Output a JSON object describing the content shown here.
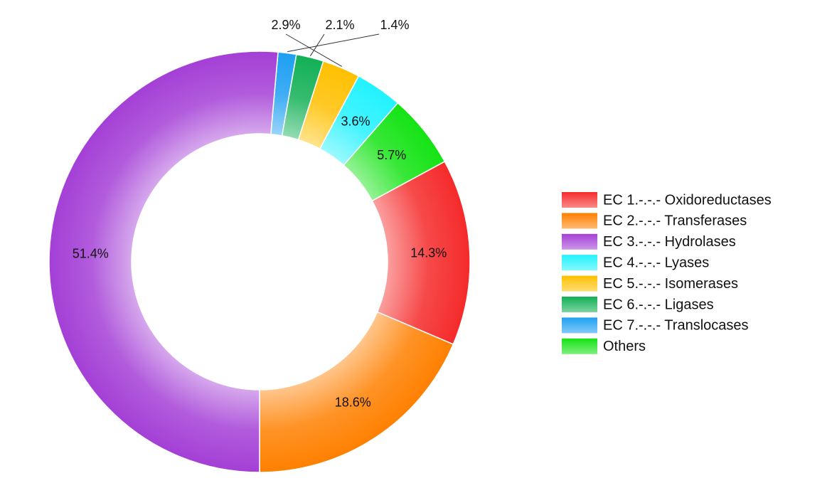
{
  "chart_data": {
    "type": "donut",
    "categories": [
      "EC 1.-.-.- Oxidoreductases",
      "EC 2.-.-.- Transferases",
      "EC 3.-.-.- Hydrolases",
      "EC 4.-.-.- Lyases",
      "EC 5.-.-.- Isomerases",
      "EC 6.-.-.- Ligases",
      "EC 7.-.-.- Translocases",
      "Others"
    ],
    "values": [
      14.3,
      18.6,
      51.4,
      3.6,
      2.9,
      2.1,
      1.4,
      5.7
    ],
    "value_labels": [
      "14.3%",
      "18.6%",
      "51.4%",
      "3.6%",
      "2.9%",
      "2.1%",
      "1.4%",
      "5.7%"
    ],
    "colors": [
      "#f52a2a",
      "#ff8000",
      "#a43fd6",
      "#22f2ff",
      "#ffc000",
      "#12b055",
      "#1e9ff2",
      "#14e314"
    ],
    "legend": "right"
  }
}
